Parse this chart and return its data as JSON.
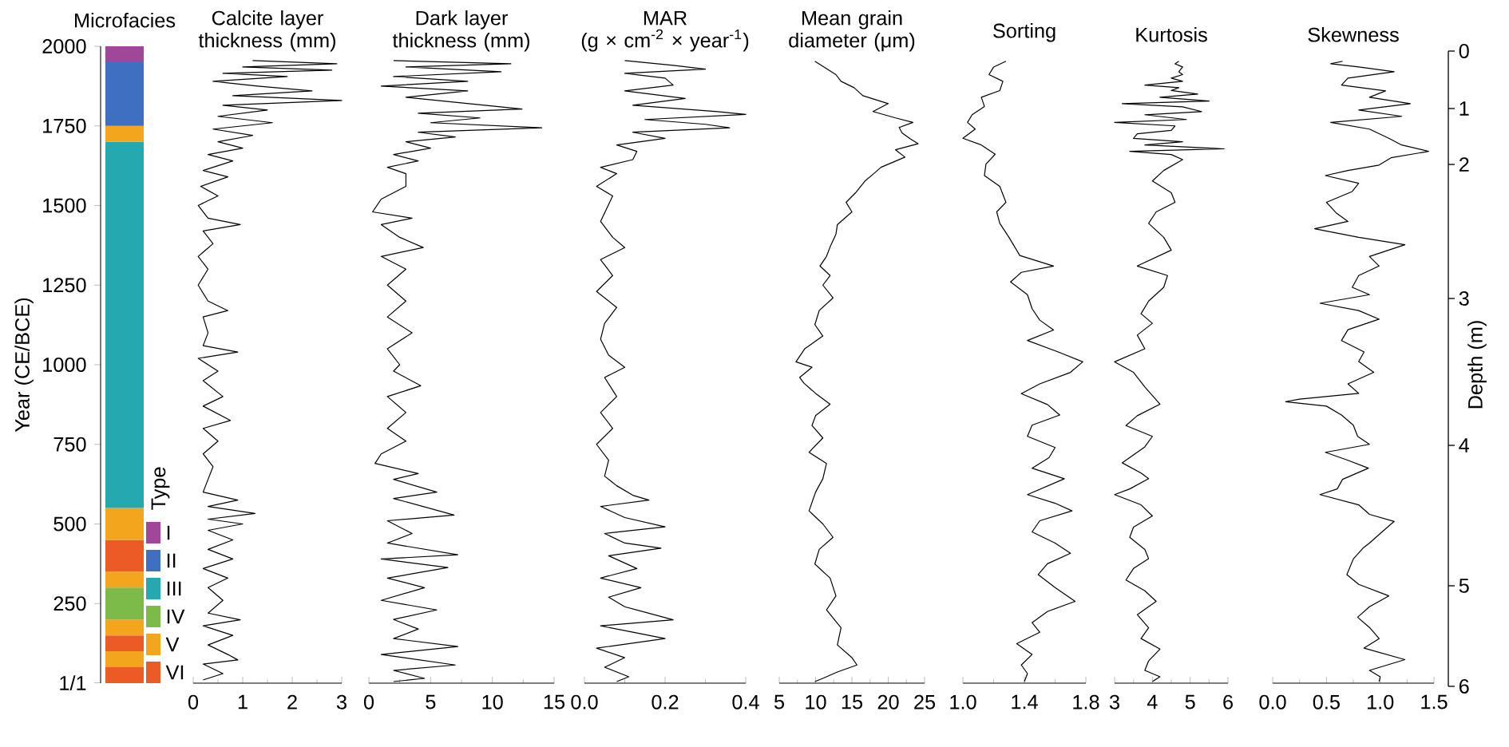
{
  "chart_data": [
    {
      "type": "bar",
      "title": "Microfacies",
      "stacked": true,
      "ylabel": "Year (CE/BCE)",
      "ylim": [
        0,
        2000
      ],
      "yticks": [
        {
          "value": 1,
          "label": "1/1"
        },
        250,
        500,
        750,
        1000,
        1250,
        1500,
        1750,
        2000
      ],
      "legend": "bottom right",
      "legend_title": "Type",
      "categories": [
        null
      ],
      "series": [
        {
          "name": "VI",
          "color": "#ec5a25",
          "values": [
            50
          ]
        },
        {
          "name": "V",
          "color": "#f2a51d",
          "values": [
            50
          ]
        },
        {
          "color": "#ec5a25",
          "values": [
            50
          ]
        },
        {
          "color": "#f2a51d",
          "values": [
            50
          ]
        },
        {
          "name": "IV",
          "color": "#7cba4a",
          "values": [
            100
          ]
        },
        {
          "color": "#f2a51d",
          "values": [
            50
          ]
        },
        {
          "color": "#ec5a25",
          "values": [
            100
          ]
        },
        {
          "color": "#f2a51d",
          "values": [
            100
          ]
        },
        {
          "name": "III",
          "color": "#25a8b0",
          "values": [
            1150
          ]
        },
        {
          "color": "#f2a51d",
          "values": [
            50
          ]
        },
        {
          "name": "II",
          "color": "#3f6fc0",
          "values": [
            200
          ]
        },
        {
          "name": "I",
          "color": "#a0479a",
          "values": [
            50
          ]
        }
      ]
    },
    {
      "type": "line",
      "title": "Calcite layer thickness (mm)",
      "tick_labels": "x",
      "color": "#000000",
      "line_style": "solid",
      "marker": "none",
      "xlim": [
        0,
        3
      ],
      "xticks": [
        0,
        1,
        2,
        3
      ],
      "ylim": [
        0,
        2000
      ],
      "x": [
        1.2,
        2.9,
        1.0,
        2.8,
        0.6,
        1.9,
        0.4,
        1.3,
        2.4,
        0.8,
        3.0,
        0.6,
        1.5,
        0.5,
        1.6,
        0.4,
        1.2,
        0.5,
        1.0,
        0.3,
        0.8,
        0.2,
        0.7,
        0.15,
        0.5,
        0.1,
        0.3,
        0.95,
        0.2,
        0.4,
        0.1,
        0.3,
        0.1,
        0.3,
        0.7,
        0.2,
        0.3,
        0.2,
        0.9,
        0.1,
        0.5,
        0.2,
        0.6,
        0.2,
        0.75,
        0.2,
        0.5,
        0.2,
        0.4,
        0.3,
        0.2,
        0.9,
        0.3,
        1.25,
        0.3,
        1.0,
        0.3,
        0.8,
        0.3,
        0.8,
        0.2,
        0.7,
        0.3,
        0.6,
        0.3,
        0.95,
        0.2,
        0.8,
        0.3,
        0.7,
        0.9,
        0.2,
        0.6,
        0.2
      ],
      "values": [
        1955,
        1945,
        1935,
        1925,
        1915,
        1905,
        1890,
        1875,
        1860,
        1845,
        1830,
        1815,
        1800,
        1780,
        1760,
        1740,
        1720,
        1700,
        1680,
        1660,
        1640,
        1610,
        1590,
        1560,
        1530,
        1500,
        1460,
        1440,
        1420,
        1380,
        1340,
        1300,
        1250,
        1200,
        1170,
        1150,
        1100,
        1060,
        1040,
        1020,
        980,
        950,
        900,
        870,
        825,
        800,
        760,
        720,
        680,
        640,
        600,
        575,
        555,
        533,
        515,
        500,
        480,
        450,
        420,
        390,
        360,
        330,
        300,
        260,
        220,
        199,
        180,
        150,
        120,
        90,
        73,
        60,
        30,
        10
      ]
    },
    {
      "type": "line",
      "title": "Dark layer thickness (mm)",
      "tick_labels": "x",
      "color": "#000000",
      "line_style": "solid",
      "marker": "none",
      "xlim": [
        0,
        15
      ],
      "xticks": [
        0,
        5,
        10,
        15
      ],
      "ylim": [
        0,
        2000
      ],
      "x": [
        2,
        11.5,
        3,
        10.7,
        2,
        8,
        1,
        8,
        3,
        12.4,
        4,
        9,
        5,
        14,
        4,
        7,
        3,
        5,
        2,
        4,
        1.5,
        3,
        3,
        1,
        0.3,
        3.5,
        1,
        2.5,
        4.4,
        1,
        3,
        1.5,
        3,
        1.5,
        3.5,
        1.5,
        2.5,
        2,
        4.2,
        1.5,
        3,
        1.5,
        3,
        1,
        0.5,
        4,
        2,
        5.5,
        2,
        6.9,
        1.5,
        3.5,
        1.5,
        7.2,
        1,
        6.4,
        1.5,
        4.5,
        1,
        5.5,
        2,
        4,
        2,
        7.2,
        1,
        7,
        2,
        4.5,
        2
      ],
      "values": [
        1955,
        1945,
        1935,
        1920,
        1905,
        1890,
        1875,
        1860,
        1840,
        1803,
        1790,
        1775,
        1760,
        1744,
        1730,
        1715,
        1700,
        1680,
        1660,
        1640,
        1620,
        1600,
        1560,
        1520,
        1480,
        1460,
        1440,
        1400,
        1368,
        1340,
        1300,
        1250,
        1200,
        1150,
        1100,
        1050,
        1000,
        980,
        934,
        900,
        850,
        800,
        760,
        720,
        690,
        658,
        640,
        600,
        580,
        528,
        510,
        470,
        440,
        403,
        390,
        363,
        330,
        300,
        260,
        230,
        200,
        170,
        140,
        115,
        90,
        57,
        40,
        15,
        5
      ]
    },
    {
      "type": "line",
      "title": "MAR",
      "subtitle": "(g × cm$^{-2}$ × year$^{-1}$)",
      "tick_labels": "x",
      "color": "#000000",
      "line_style": "solid",
      "marker": "none",
      "xlim": [
        0,
        0.4
      ],
      "xticks": [
        {
          "value": 0,
          "label": "0.0"
        },
        {
          "value": 0.2,
          "label": "0.2"
        },
        {
          "value": 0.4,
          "label": "0.4"
        }
      ],
      "ylim": [
        0,
        2000
      ],
      "x": [
        0.1,
        0.22,
        0.3,
        0.1,
        0.2,
        0.22,
        0.1,
        0.25,
        0.12,
        0.33,
        0.4,
        0.15,
        0.3,
        0.36,
        0.12,
        0.2,
        0.08,
        0.13,
        0.12,
        0.04,
        0.08,
        0.03,
        0.07,
        0.04,
        0.07,
        0.1,
        0.04,
        0.07,
        0.03,
        0.08,
        0.05,
        0.04,
        0.06,
        0.1,
        0.05,
        0.08,
        0.04,
        0.07,
        0.03,
        0.06,
        0.05,
        0.08,
        0.12,
        0.16,
        0.04,
        0.1,
        0.2,
        0.05,
        0.1,
        0.19,
        0.06,
        0.13,
        0.04,
        0.14,
        0.06,
        0.1,
        0.22,
        0.04,
        0.12,
        0.2,
        0.03,
        0.1,
        0.05,
        0.11,
        0.08
      ],
      "values": [
        1955,
        1940,
        1928,
        1915,
        1900,
        1878,
        1860,
        1836,
        1815,
        1795,
        1786,
        1770,
        1755,
        1744,
        1730,
        1711,
        1690,
        1670,
        1644,
        1620,
        1600,
        1560,
        1530,
        1450,
        1400,
        1368,
        1330,
        1280,
        1230,
        1180,
        1130,
        1080,
        1030,
        992,
        960,
        900,
        850,
        800,
        750,
        700,
        650,
        620,
        590,
        575,
        555,
        520,
        491,
        470,
        440,
        424,
        400,
        360,
        330,
        300,
        270,
        240,
        199,
        180,
        160,
        140,
        110,
        80,
        50,
        20,
        5
      ]
    },
    {
      "type": "line",
      "title": "Mean grain diameter (μm)",
      "tick_labels": "x",
      "color": "#000000",
      "line_style": "solid",
      "marker": "none",
      "xlim": [
        5,
        25
      ],
      "xticks": [
        5,
        10,
        15,
        20,
        25
      ],
      "ylim": [
        0,
        2000
      ],
      "x": [
        9.9,
        11.5,
        12.8,
        13.5,
        15.3,
        16.5,
        20,
        17.9,
        21,
        23.4,
        21.5,
        21.9,
        23,
        24.1,
        21,
        22.3,
        19,
        18,
        16.8,
        15.5,
        14.2,
        15,
        13,
        12.8,
        12,
        11.5,
        10.6,
        12,
        11,
        12.4,
        10.5,
        9.9,
        11,
        8.5,
        7.3,
        9.5,
        7.8,
        8.4,
        10,
        12,
        10,
        9.5,
        11,
        9.1,
        11.5,
        11,
        10,
        9.1,
        11,
        12.4,
        10.5,
        9.9,
        12,
        12.8,
        11.5,
        13.5,
        13,
        15,
        15.7,
        13,
        11,
        9.9
      ],
      "values": [
        1953,
        1930,
        1911,
        1890,
        1870,
        1845,
        1820,
        1795,
        1775,
        1761,
        1745,
        1728,
        1710,
        1694,
        1675,
        1652,
        1620,
        1600,
        1577,
        1540,
        1510,
        1480,
        1440,
        1410,
        1370,
        1340,
        1310,
        1280,
        1250,
        1210,
        1170,
        1126,
        1090,
        1050,
        1009,
        992,
        960,
        942,
        910,
        876,
        840,
        809,
        770,
        725,
        690,
        642,
        600,
        541,
        500,
        458,
        420,
        374,
        330,
        274,
        230,
        174,
        120,
        80,
        57,
        35,
        15,
        5
      ]
    },
    {
      "type": "line",
      "title": "Sorting",
      "tick_labels": "x",
      "color": "#000000",
      "line_style": "solid",
      "marker": "none",
      "xlim": [
        1.0,
        1.8
      ],
      "xticks": [
        {
          "value": 1.0,
          "label": "1.0"
        },
        1.4,
        1.8
      ],
      "ylim": [
        0,
        2000
      ],
      "x": [
        1.28,
        1.2,
        1.17,
        1.26,
        1.24,
        1.12,
        1.14,
        1.06,
        1.03,
        1.08,
        1.0,
        1.12,
        1.21,
        1.15,
        1.14,
        1.24,
        1.28,
        1.22,
        1.24,
        1.3,
        1.37,
        1.59,
        1.38,
        1.31,
        1.42,
        1.45,
        1.5,
        1.59,
        1.42,
        1.62,
        1.78,
        1.7,
        1.5,
        1.38,
        1.55,
        1.63,
        1.45,
        1.42,
        1.6,
        1.56,
        1.45,
        1.66,
        1.42,
        1.6,
        1.71,
        1.5,
        1.45,
        1.6,
        1.7,
        1.55,
        1.49,
        1.6,
        1.73,
        1.55,
        1.45,
        1.5,
        1.35,
        1.45,
        1.38,
        1.42,
        1.4
      ],
      "values": [
        1953,
        1935,
        1911,
        1890,
        1861,
        1840,
        1811,
        1785,
        1761,
        1740,
        1711,
        1690,
        1661,
        1630,
        1594,
        1560,
        1510,
        1480,
        1444,
        1400,
        1343,
        1310,
        1290,
        1260,
        1220,
        1176,
        1140,
        1109,
        1076,
        1040,
        1009,
        976,
        940,
        909,
        875,
        842,
        810,
        775,
        740,
        708,
        675,
        642,
        592,
        565,
        541,
        510,
        475,
        440,
        408,
        375,
        341,
        300,
        257,
        225,
        190,
        160,
        124,
        90,
        57,
        30,
        5
      ]
    },
    {
      "type": "line",
      "title": "Kurtosis",
      "tick_labels": "x",
      "color": "#000000",
      "line_style": "solid",
      "marker": "none",
      "xlim": [
        3,
        6
      ],
      "xticks": [
        3,
        4,
        5,
        6
      ],
      "ylim": [
        0,
        2000
      ],
      "x": [
        4.7,
        4.6,
        4.8,
        4.7,
        4.8,
        4.5,
        4.8,
        3.8,
        4.7,
        4.5,
        5.2,
        4.2,
        5.5,
        3.2,
        4.8,
        5.3,
        3.8,
        4.9,
        3.0,
        4.6,
        4.5,
        3.6,
        3.5,
        4.8,
        3.8,
        5.9,
        3.4,
        4.5,
        4.8,
        4.3,
        4.0,
        4.5,
        4.6,
        4.1,
        3.9,
        4.3,
        4.5,
        3.6,
        4.4,
        4.3,
        3.9,
        3.7,
        4.0,
        3.6,
        3.8,
        3.0,
        3.5,
        3.8,
        4.2,
        3.6,
        3.3,
        4.0,
        3.8,
        3.2,
        3.7,
        3.9,
        3.4,
        3.0,
        3.7,
        4.0,
        3.5,
        3.4,
        3.8,
        3.9,
        3.5,
        3.3,
        3.8,
        4.1,
        3.6,
        3.9,
        3.7,
        4.2,
        3.9,
        3.8,
        4.2,
        4.0
      ],
      "values": [
        1953,
        1945,
        1935,
        1920,
        1911,
        1900,
        1890,
        1878,
        1870,
        1861,
        1850,
        1840,
        1828,
        1820,
        1810,
        1795,
        1785,
        1770,
        1761,
        1750,
        1736,
        1725,
        1711,
        1700,
        1690,
        1678,
        1670,
        1660,
        1644,
        1610,
        1577,
        1540,
        1510,
        1480,
        1444,
        1400,
        1360,
        1310,
        1280,
        1243,
        1200,
        1160,
        1130,
        1093,
        1050,
        1009,
        976,
        930,
        876,
        840,
        809,
        775,
        742,
        692,
        660,
        642,
        610,
        592,
        560,
        525,
        490,
        458,
        420,
        391,
        360,
        324,
        290,
        257,
        215,
        174,
        140,
        107,
        70,
        40,
        20,
        5
      ]
    },
    {
      "type": "line",
      "title": "Skewness",
      "tick_labels": "x",
      "color": "#000000",
      "line_style": "solid",
      "marker": "none",
      "xlim": [
        0,
        1.5
      ],
      "xticks": [
        {
          "value": 0,
          "label": "0.0"
        },
        0.5,
        {
          "value": 1,
          "label": "1.0"
        },
        1.5
      ],
      "ylim": [
        0,
        2000
      ],
      "y2label": "Depth (m)",
      "annotations": [
        "0",
        "1",
        "2",
        "3",
        "4",
        "5",
        "6"
      ],
      "x": [
        0.65,
        0.54,
        0.8,
        1.13,
        0.7,
        0.64,
        1.05,
        0.9,
        1.28,
        0.8,
        1.2,
        0.54,
        0.9,
        1.08,
        1.2,
        1.45,
        1.1,
        0.99,
        0.7,
        0.49,
        0.8,
        0.74,
        0.5,
        0.59,
        0.7,
        0.39,
        0.8,
        1.23,
        0.9,
        0.99,
        0.8,
        0.74,
        0.9,
        0.44,
        0.8,
        0.99,
        0.7,
        0.64,
        0.85,
        0.8,
        0.94,
        0.7,
        0.8,
        0.25,
        0.12,
        0.5,
        0.64,
        0.75,
        0.79,
        0.9,
        0.49,
        0.7,
        0.89,
        0.65,
        0.6,
        0.44,
        0.8,
        0.9,
        1.13,
        1.0,
        0.9,
        0.84,
        0.75,
        0.69,
        0.8,
        1.08,
        0.9,
        0.79,
        0.9,
        0.99,
        0.85,
        1.23,
        0.9,
        1.0,
        0.99
      ],
      "values": [
        1953,
        1945,
        1935,
        1920,
        1900,
        1878,
        1860,
        1840,
        1820,
        1800,
        1780,
        1761,
        1740,
        1711,
        1690,
        1670,
        1650,
        1627,
        1610,
        1594,
        1570,
        1544,
        1510,
        1477,
        1450,
        1427,
        1400,
        1377,
        1340,
        1310,
        1280,
        1243,
        1220,
        1193,
        1170,
        1143,
        1110,
        1076,
        1040,
        1010,
        976,
        940,
        910,
        892,
        884,
        870,
        842,
        810,
        775,
        750,
        725,
        700,
        675,
        640,
        610,
        592,
        560,
        530,
        508,
        470,
        440,
        424,
        390,
        341,
        310,
        274,
        240,
        207,
        175,
        140,
        110,
        74,
        40,
        20,
        5
      ]
    }
  ]
}
